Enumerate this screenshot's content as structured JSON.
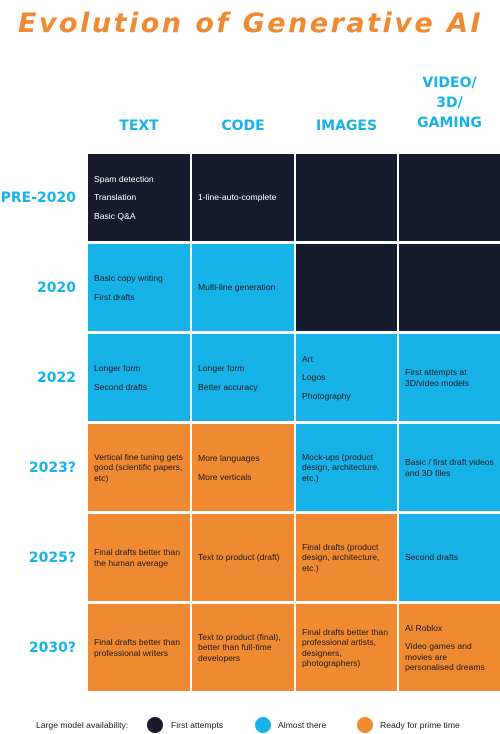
{
  "title": "Evolution of Generative AI",
  "columns": [
    "TEXT",
    "CODE",
    "IMAGES",
    "VIDEO/ 3D/ GAMING"
  ],
  "colors": {
    "first_attempts": "#171b2e",
    "almost_there": "#17b2e8",
    "ready": "#f08a32",
    "accent": "#17b2e8",
    "title": "#f08a32"
  },
  "rows": [
    {
      "label": "PRE-2020",
      "cells": [
        {
          "level": "first_attempts",
          "lines": [
            "Spam detection",
            "Translation",
            "Basic Q&A"
          ]
        },
        {
          "level": "first_attempts",
          "lines": [
            "1-line-auto-complete"
          ]
        },
        {
          "level": "first_attempts",
          "lines": []
        },
        {
          "level": "first_attempts",
          "lines": []
        }
      ]
    },
    {
      "label": "2020",
      "cells": [
        {
          "level": "almost_there",
          "lines": [
            "Basic copy writing",
            "First drafts"
          ]
        },
        {
          "level": "almost_there",
          "lines": [
            "Multi-line generation"
          ]
        },
        {
          "level": "first_attempts",
          "lines": []
        },
        {
          "level": "first_attempts",
          "lines": []
        }
      ]
    },
    {
      "label": "2022",
      "cells": [
        {
          "level": "almost_there",
          "lines": [
            "Longer form",
            "Second drafts"
          ]
        },
        {
          "level": "almost_there",
          "lines": [
            "Longer form",
            "Better accuracy"
          ]
        },
        {
          "level": "almost_there",
          "lines": [
            "Art",
            "Logos",
            "Photography"
          ]
        },
        {
          "level": "almost_there",
          "lines": [
            "First attempts at 3D/video models"
          ]
        }
      ]
    },
    {
      "label": "2023?",
      "cells": [
        {
          "level": "ready",
          "lines": [
            "Vertical fine tuning gets good (scientific papers, etc)"
          ]
        },
        {
          "level": "ready",
          "lines": [
            "More languages",
            "More verticals"
          ]
        },
        {
          "level": "almost_there",
          "lines": [
            "Mock-ups (product design, architecture. etc.)"
          ]
        },
        {
          "level": "almost_there",
          "lines": [
            "Basic / first draft videos and 3D files"
          ]
        }
      ]
    },
    {
      "label": "2025?",
      "cells": [
        {
          "level": "ready",
          "lines": [
            "Final drafts better than the human average"
          ]
        },
        {
          "level": "ready",
          "lines": [
            "Text to product (draft)"
          ]
        },
        {
          "level": "ready",
          "lines": [
            "Final drafts (product design, architecture, etc.)"
          ]
        },
        {
          "level": "almost_there",
          "lines": [
            "Second drafts"
          ]
        }
      ]
    },
    {
      "label": "2030?",
      "cells": [
        {
          "level": "ready",
          "lines": [
            "Final drafts better than professional writers"
          ]
        },
        {
          "level": "ready",
          "lines": [
            "Text to product (final), better than full-time developers"
          ]
        },
        {
          "level": "ready",
          "lines": [
            "Final drafts better than professional artists, designers, photographers)"
          ]
        },
        {
          "level": "ready",
          "lines": [
            "AI Roblox",
            "Video games and movies are personalised dreams"
          ]
        }
      ]
    }
  ],
  "legend": {
    "label": "Large model availability:",
    "items": [
      {
        "level": "first_attempts",
        "text": "First attempts"
      },
      {
        "level": "almost_there",
        "text": "Almost there"
      },
      {
        "level": "ready",
        "text": "Ready for prime time"
      }
    ]
  }
}
